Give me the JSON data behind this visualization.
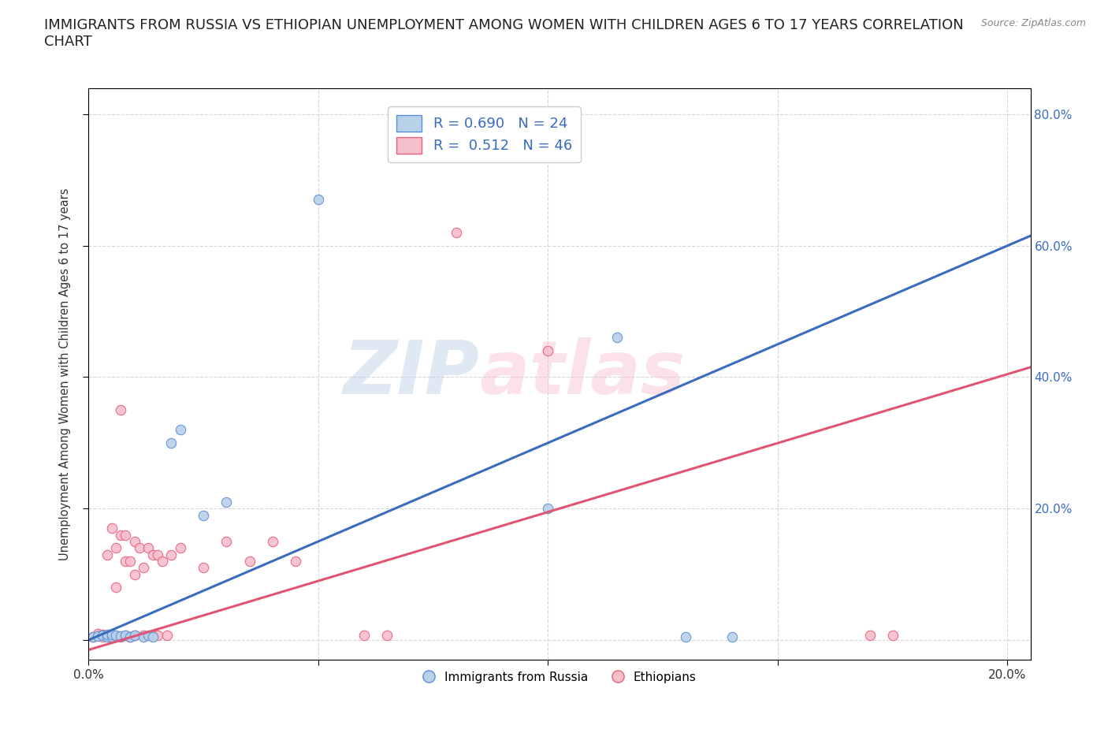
{
  "title": "IMMIGRANTS FROM RUSSIA VS ETHIOPIAN UNEMPLOYMENT AMONG WOMEN WITH CHILDREN AGES 6 TO 17 YEARS CORRELATION\nCHART",
  "source": "Source: ZipAtlas.com",
  "ylabel": "Unemployment Among Women with Children Ages 6 to 17 years",
  "watermark_zip": "ZIP",
  "watermark_atlas": "atlas",
  "xlim": [
    0.0,
    0.205
  ],
  "ylim": [
    -0.03,
    0.84
  ],
  "xticks": [
    0.0,
    0.05,
    0.1,
    0.15,
    0.2
  ],
  "yticks": [
    0.0,
    0.2,
    0.4,
    0.6,
    0.8
  ],
  "r_blue": 0.69,
  "n_blue": 24,
  "r_pink": 0.512,
  "n_pink": 46,
  "legend_label_blue": "Immigrants from Russia",
  "legend_label_pink": "Ethiopians",
  "blue_fill": "#b8d0e8",
  "pink_fill": "#f5bfcc",
  "blue_edge": "#5b8fd4",
  "pink_edge": "#e8607a",
  "blue_line": "#3a6bbf",
  "pink_line": "#e05575",
  "scatter_blue": [
    [
      0.001,
      0.005
    ],
    [
      0.002,
      0.006
    ],
    [
      0.003,
      0.007
    ],
    [
      0.004,
      0.005
    ],
    [
      0.004,
      0.008
    ],
    [
      0.005,
      0.005
    ],
    [
      0.005,
      0.008
    ],
    [
      0.006,
      0.007
    ],
    [
      0.007,
      0.006
    ],
    [
      0.008,
      0.007
    ],
    [
      0.009,
      0.005
    ],
    [
      0.01,
      0.007
    ],
    [
      0.012,
      0.005
    ],
    [
      0.013,
      0.007
    ],
    [
      0.014,
      0.005
    ],
    [
      0.018,
      0.3
    ],
    [
      0.02,
      0.32
    ],
    [
      0.025,
      0.19
    ],
    [
      0.03,
      0.21
    ],
    [
      0.05,
      0.67
    ],
    [
      0.1,
      0.2
    ],
    [
      0.115,
      0.46
    ],
    [
      0.13,
      0.005
    ],
    [
      0.14,
      0.005
    ]
  ],
  "scatter_pink": [
    [
      0.001,
      0.005
    ],
    [
      0.002,
      0.007
    ],
    [
      0.002,
      0.01
    ],
    [
      0.003,
      0.005
    ],
    [
      0.003,
      0.008
    ],
    [
      0.004,
      0.006
    ],
    [
      0.004,
      0.13
    ],
    [
      0.005,
      0.005
    ],
    [
      0.005,
      0.17
    ],
    [
      0.006,
      0.005
    ],
    [
      0.006,
      0.08
    ],
    [
      0.006,
      0.14
    ],
    [
      0.007,
      0.005
    ],
    [
      0.007,
      0.16
    ],
    [
      0.007,
      0.35
    ],
    [
      0.008,
      0.007
    ],
    [
      0.008,
      0.12
    ],
    [
      0.008,
      0.16
    ],
    [
      0.009,
      0.005
    ],
    [
      0.009,
      0.12
    ],
    [
      0.01,
      0.007
    ],
    [
      0.01,
      0.1
    ],
    [
      0.01,
      0.15
    ],
    [
      0.011,
      0.14
    ],
    [
      0.012,
      0.007
    ],
    [
      0.012,
      0.11
    ],
    [
      0.013,
      0.14
    ],
    [
      0.014,
      0.007
    ],
    [
      0.014,
      0.13
    ],
    [
      0.015,
      0.007
    ],
    [
      0.015,
      0.13
    ],
    [
      0.016,
      0.12
    ],
    [
      0.017,
      0.007
    ],
    [
      0.018,
      0.13
    ],
    [
      0.02,
      0.14
    ],
    [
      0.025,
      0.11
    ],
    [
      0.03,
      0.15
    ],
    [
      0.035,
      0.12
    ],
    [
      0.04,
      0.15
    ],
    [
      0.045,
      0.12
    ],
    [
      0.06,
      0.007
    ],
    [
      0.065,
      0.007
    ],
    [
      0.08,
      0.62
    ],
    [
      0.1,
      0.44
    ],
    [
      0.17,
      0.007
    ],
    [
      0.175,
      0.007
    ]
  ],
  "blue_trendline": [
    [
      0.0,
      0.0
    ],
    [
      0.205,
      0.615
    ]
  ],
  "pink_trendline": [
    [
      0.0,
      -0.015
    ],
    [
      0.205,
      0.415
    ]
  ],
  "background_color": "#ffffff",
  "grid_color": "#cccccc",
  "title_fontsize": 13,
  "axis_label_fontsize": 10.5,
  "tick_fontsize": 11,
  "stat_fontsize": 13
}
